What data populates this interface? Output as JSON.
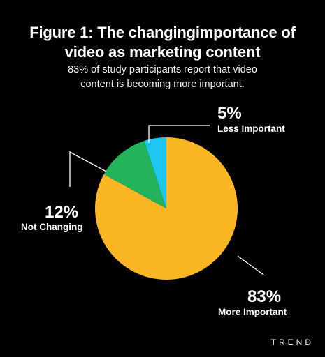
{
  "title_line1": "Figure 1: The changingimportance of",
  "title_line2": "video as marketing content",
  "subtitle_line1": "83% of study participants report that video",
  "subtitle_line2": "content is becoming more important.",
  "brand": "TREND",
  "chart_data": {
    "type": "pie",
    "title": "Figure 1: The changingimportance of video as marketing content",
    "slices": [
      {
        "label": "More Important",
        "value": 83,
        "value_label": "83%",
        "color": "#fbb623"
      },
      {
        "label": "Not Changing",
        "value": 12,
        "value_label": "12%",
        "color": "#22b35b"
      },
      {
        "label": "Less Important",
        "value": 5,
        "value_label": "5%",
        "color": "#1ec7ef"
      }
    ]
  }
}
